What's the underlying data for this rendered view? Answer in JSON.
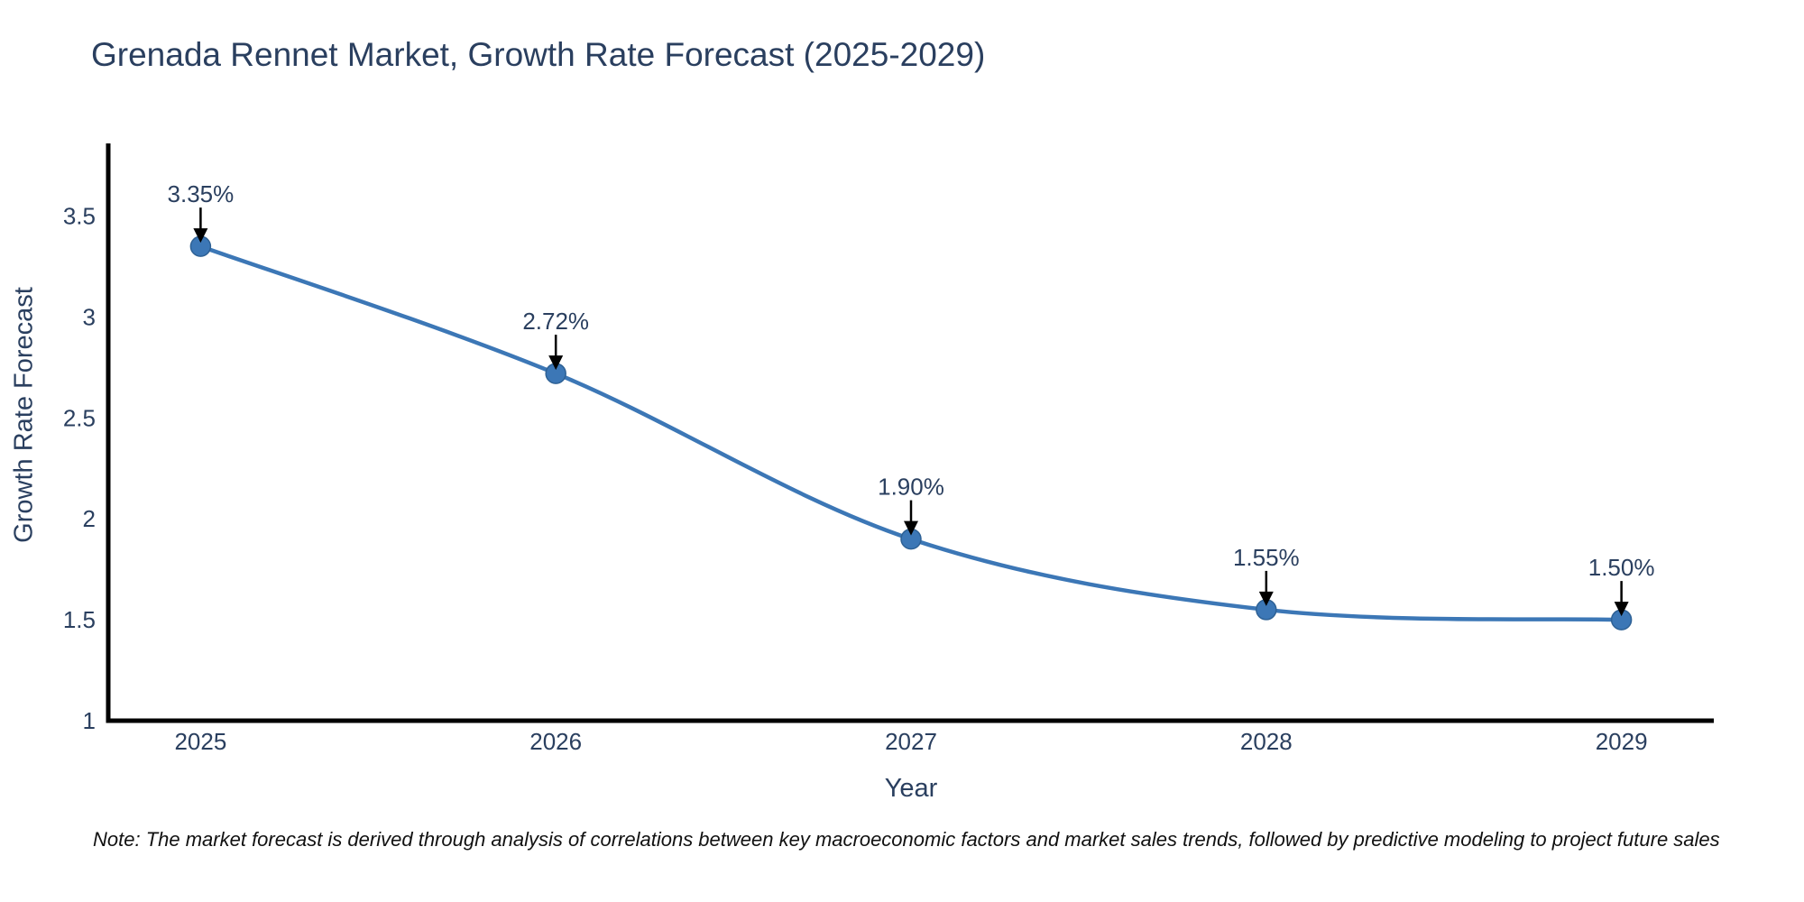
{
  "chart": {
    "title": "Grenada Rennet Market, Growth Rate Forecast (2025-2029)"
  },
  "chart_data": {
    "type": "line",
    "x": [
      2025,
      2026,
      2027,
      2028,
      2029
    ],
    "y": [
      3.35,
      2.72,
      1.9,
      1.55,
      1.5
    ],
    "point_labels": [
      "3.35%",
      "2.72%",
      "1.90%",
      "1.55%",
      "1.50%"
    ],
    "x_tick_labels": [
      "2025",
      "2026",
      "2027",
      "2028",
      "2029"
    ],
    "y_ticks": [
      1,
      1.5,
      2,
      2.5,
      3,
      3.5
    ],
    "y_tick_labels": [
      "1",
      "1.5",
      "2",
      "2.5",
      "3",
      "3.5"
    ],
    "xlabel": "Year",
    "ylabel": "Growth Rate Forecast",
    "xlim": [
      2024.74,
      2029.26
    ],
    "ylim": [
      1,
      3.86
    ],
    "line_shape": "spline",
    "grid": false,
    "legend": "none",
    "line_color": "#3c77b6",
    "marker_color": "#3c77b6",
    "marker_edge_color": "#2e6195",
    "annotation_arrow_color": "#000000",
    "text_color": "#2a3f5f",
    "axis_line_color": "#000000"
  },
  "note": {
    "text": "Note: The market forecast is derived through analysis of correlations between key macroeconomic factors and market sales trends, followed by predictive modeling to project future sales"
  }
}
